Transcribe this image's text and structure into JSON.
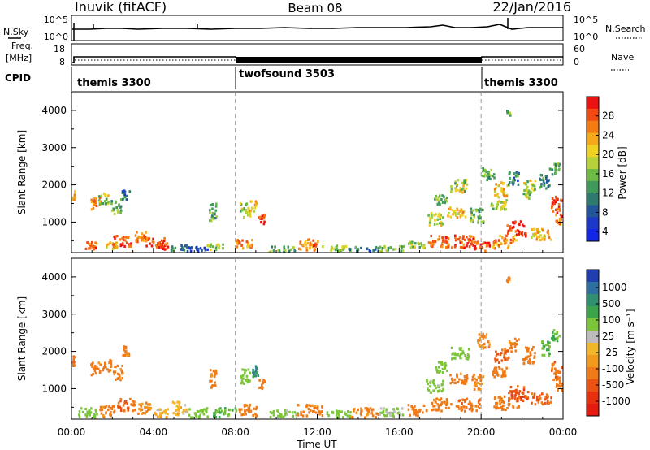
{
  "header": {
    "station": "Inuvik (fitACF)",
    "beam": "Beam 08",
    "date": "22/Jan/2016"
  },
  "strips": {
    "nsky": {
      "label": "N.Sky",
      "ticks": [
        "10^5",
        "10^0"
      ]
    },
    "nsearch": {
      "label": "N.Search",
      "ticks": [
        "10^5",
        "10^0"
      ]
    },
    "freq": {
      "label_line1": "Freq.",
      "label_line2": "[MHz]",
      "ticks": [
        "18",
        "8"
      ]
    },
    "nave": {
      "label": "Nave",
      "ticks": [
        "60",
        "0"
      ]
    },
    "cpid": {
      "label": "CPID",
      "segments": [
        {
          "name": "themis 3300",
          "start_hour": 0,
          "end_hour": 8
        },
        {
          "name": "twofsound 3503",
          "start_hour": 8,
          "end_hour": 20
        },
        {
          "name": "themis 3300",
          "start_hour": 20,
          "end_hour": 24
        }
      ]
    }
  },
  "axes": {
    "ylabel": "Slant Range [km]",
    "xlabel": "Time UT",
    "yticks": [
      "4000",
      "3000",
      "2000",
      "1000"
    ],
    "xticks": [
      "00:00",
      "04:00",
      "08:00",
      "12:00",
      "16:00",
      "20:00",
      "00:00"
    ]
  },
  "colorbars": {
    "power": {
      "label": "Power [dB]",
      "ticks": [
        "28",
        "24",
        "20",
        "16",
        "12",
        "8",
        "4"
      ],
      "colors": [
        "#ee1111",
        "#f24a10",
        "#f47a12",
        "#f5a81a",
        "#f0d020",
        "#b6d23a",
        "#6dbb45",
        "#3f9a5a",
        "#2e7a6e",
        "#23559a",
        "#1c38c8",
        "#1226e8"
      ]
    },
    "velocity": {
      "label": "Velocity [m s⁻¹]",
      "ticks": [
        "1000",
        "500",
        "100",
        "25",
        "-25",
        "-100",
        "-500",
        "-1000"
      ],
      "colors": [
        "#1f3fb0",
        "#2c6fa0",
        "#2f8f6f",
        "#3aa44a",
        "#7cc43a",
        "#bcbcbc",
        "#f3b52a",
        "#f29a1e",
        "#f07a17",
        "#ec5312",
        "#e8300f",
        "#e31a0c"
      ]
    }
  },
  "chart_data": {
    "type": "heatmap",
    "x_label": "Time UT",
    "x_units": "hours UT",
    "x_range": [
      0,
      24
    ],
    "y_label": "Slant Range [km]",
    "y_range": [
      180,
      4500
    ],
    "cpid_changes_hours": [
      8,
      20
    ],
    "power_patches": [
      {
        "t": 0.0,
        "r": 1750,
        "dt": 0.15,
        "dr": 300,
        "v": 20
      },
      {
        "t": 0.9,
        "r": 1550,
        "dt": 0.5,
        "dr": 350,
        "v": 24
      },
      {
        "t": 1.3,
        "r": 1650,
        "dt": 0.5,
        "dr": 300,
        "v": 16
      },
      {
        "t": 1.9,
        "r": 1450,
        "dt": 0.5,
        "dr": 400,
        "v": 12
      },
      {
        "t": 2.4,
        "r": 1750,
        "dt": 0.4,
        "dr": 250,
        "v": 8
      },
      {
        "t": 0.6,
        "r": 420,
        "dt": 0.6,
        "dr": 250,
        "v": 24
      },
      {
        "t": 1.6,
        "r": 380,
        "dt": 0.6,
        "dr": 200,
        "v": 20
      },
      {
        "t": 2.0,
        "r": 520,
        "dt": 0.9,
        "dr": 300,
        "v": 28
      },
      {
        "t": 3.0,
        "r": 620,
        "dt": 0.7,
        "dr": 300,
        "v": 24
      },
      {
        "t": 3.6,
        "r": 480,
        "dt": 0.9,
        "dr": 250,
        "v": 28
      },
      {
        "t": 4.2,
        "r": 380,
        "dt": 0.5,
        "dr": 200,
        "v": 28
      },
      {
        "t": 4.8,
        "r": 340,
        "dt": 0.8,
        "dr": 150,
        "v": 8
      },
      {
        "t": 5.6,
        "r": 300,
        "dt": 1.0,
        "dr": 120,
        "v": 4
      },
      {
        "t": 6.7,
        "r": 1300,
        "dt": 0.35,
        "dr": 500,
        "v": 12
      },
      {
        "t": 6.6,
        "r": 360,
        "dt": 0.8,
        "dr": 150,
        "v": 16
      },
      {
        "t": 8.2,
        "r": 1350,
        "dt": 0.5,
        "dr": 400,
        "v": 16
      },
      {
        "t": 8.7,
        "r": 1450,
        "dt": 0.3,
        "dr": 300,
        "v": 20
      },
      {
        "t": 9.1,
        "r": 1100,
        "dt": 0.3,
        "dr": 250,
        "v": 28
      },
      {
        "t": 8.0,
        "r": 450,
        "dt": 0.8,
        "dr": 250,
        "v": 24
      },
      {
        "t": 9.6,
        "r": 300,
        "dt": 1.4,
        "dr": 150,
        "v": 12
      },
      {
        "t": 11.0,
        "r": 420,
        "dt": 1.0,
        "dr": 300,
        "v": 24
      },
      {
        "t": 12.2,
        "r": 320,
        "dt": 1.2,
        "dr": 150,
        "v": 16
      },
      {
        "t": 13.5,
        "r": 300,
        "dt": 1.5,
        "dr": 120,
        "v": 8
      },
      {
        "t": 15.0,
        "r": 320,
        "dt": 1.2,
        "dr": 150,
        "v": 12
      },
      {
        "t": 16.4,
        "r": 400,
        "dt": 0.8,
        "dr": 200,
        "v": 16
      },
      {
        "t": 17.3,
        "r": 1100,
        "dt": 0.8,
        "dr": 350,
        "v": 16
      },
      {
        "t": 17.7,
        "r": 1650,
        "dt": 0.6,
        "dr": 300,
        "v": 12
      },
      {
        "t": 17.4,
        "r": 500,
        "dt": 1.0,
        "dr": 350,
        "v": 24
      },
      {
        "t": 18.4,
        "r": 2000,
        "dt": 0.9,
        "dr": 350,
        "v": 16
      },
      {
        "t": 18.3,
        "r": 1300,
        "dt": 0.9,
        "dr": 300,
        "v": 20
      },
      {
        "t": 18.5,
        "r": 500,
        "dt": 1.2,
        "dr": 350,
        "v": 28
      },
      {
        "t": 19.4,
        "r": 1200,
        "dt": 0.7,
        "dr": 400,
        "v": 12
      },
      {
        "t": 19.5,
        "r": 380,
        "dt": 0.9,
        "dr": 250,
        "v": 28
      },
      {
        "t": 20.0,
        "r": 2300,
        "dt": 0.6,
        "dr": 400,
        "v": 12
      },
      {
        "t": 20.6,
        "r": 1900,
        "dt": 0.7,
        "dr": 400,
        "v": 20
      },
      {
        "t": 20.4,
        "r": 1500,
        "dt": 0.8,
        "dr": 300,
        "v": 16
      },
      {
        "t": 20.5,
        "r": 500,
        "dt": 1.2,
        "dr": 350,
        "v": 24
      },
      {
        "t": 21.2,
        "r": 850,
        "dt": 1.0,
        "dr": 400,
        "v": 28
      },
      {
        "t": 21.3,
        "r": 2200,
        "dt": 0.5,
        "dr": 350,
        "v": 8
      },
      {
        "t": 21.2,
        "r": 3950,
        "dt": 0.2,
        "dr": 150,
        "v": 12
      },
      {
        "t": 22.0,
        "r": 1900,
        "dt": 0.6,
        "dr": 500,
        "v": 16
      },
      {
        "t": 22.4,
        "r": 700,
        "dt": 1.0,
        "dr": 300,
        "v": 20
      },
      {
        "t": 22.8,
        "r": 2100,
        "dt": 0.5,
        "dr": 400,
        "v": 8
      },
      {
        "t": 23.4,
        "r": 1500,
        "dt": 0.5,
        "dr": 500,
        "v": 28
      },
      {
        "t": 23.6,
        "r": 1100,
        "dt": 0.3,
        "dr": 300,
        "v": 24
      },
      {
        "t": 23.3,
        "r": 2450,
        "dt": 0.5,
        "dr": 300,
        "v": 12
      }
    ],
    "velocity_patches": [
      {
        "t": 0.0,
        "r": 1750,
        "dt": 0.15,
        "dr": 300,
        "v": -300
      },
      {
        "t": 0.9,
        "r": 1550,
        "dt": 0.5,
        "dr": 350,
        "v": -150
      },
      {
        "t": 1.4,
        "r": 1650,
        "dt": 0.5,
        "dr": 300,
        "v": -200
      },
      {
        "t": 2.0,
        "r": 1450,
        "dt": 0.5,
        "dr": 400,
        "v": -120
      },
      {
        "t": 2.4,
        "r": 2050,
        "dt": 0.4,
        "dr": 250,
        "v": -150
      },
      {
        "t": 0.3,
        "r": 380,
        "dt": 0.9,
        "dr": 250,
        "v": 200
      },
      {
        "t": 1.3,
        "r": 420,
        "dt": 0.8,
        "dr": 300,
        "v": -150
      },
      {
        "t": 2.2,
        "r": 600,
        "dt": 0.9,
        "dr": 350,
        "v": -250
      },
      {
        "t": 3.2,
        "r": 500,
        "dt": 0.8,
        "dr": 300,
        "v": -100
      },
      {
        "t": 4.0,
        "r": 380,
        "dt": 0.7,
        "dr": 250,
        "v": 0
      },
      {
        "t": 4.9,
        "r": 500,
        "dt": 0.8,
        "dr": 350,
        "v": 0
      },
      {
        "t": 5.7,
        "r": 380,
        "dt": 0.9,
        "dr": 250,
        "v": 150
      },
      {
        "t": 6.7,
        "r": 1300,
        "dt": 0.35,
        "dr": 500,
        "v": -150
      },
      {
        "t": 6.9,
        "r": 380,
        "dt": 1.1,
        "dr": 250,
        "v": 300
      },
      {
        "t": 8.2,
        "r": 1350,
        "dt": 0.5,
        "dr": 400,
        "v": 200
      },
      {
        "t": 8.8,
        "r": 1500,
        "dt": 0.3,
        "dr": 300,
        "v": 600
      },
      {
        "t": 9.1,
        "r": 1150,
        "dt": 0.3,
        "dr": 250,
        "v": -200
      },
      {
        "t": 8.1,
        "r": 450,
        "dt": 0.9,
        "dr": 300,
        "v": -150
      },
      {
        "t": 9.6,
        "r": 350,
        "dt": 1.4,
        "dr": 200,
        "v": 150
      },
      {
        "t": 11.0,
        "r": 450,
        "dt": 1.2,
        "dr": 300,
        "v": -150
      },
      {
        "t": 12.4,
        "r": 350,
        "dt": 1.2,
        "dr": 200,
        "v": 200
      },
      {
        "t": 13.6,
        "r": 380,
        "dt": 1.4,
        "dr": 250,
        "v": -120
      },
      {
        "t": 15.0,
        "r": 400,
        "dt": 1.2,
        "dr": 250,
        "v": 100
      },
      {
        "t": 16.4,
        "r": 450,
        "dt": 0.9,
        "dr": 300,
        "v": -200
      },
      {
        "t": 17.3,
        "r": 1100,
        "dt": 0.8,
        "dr": 350,
        "v": 150
      },
      {
        "t": 17.7,
        "r": 1600,
        "dt": 0.6,
        "dr": 300,
        "v": 200
      },
      {
        "t": 17.5,
        "r": 600,
        "dt": 1.0,
        "dr": 350,
        "v": -150
      },
      {
        "t": 18.5,
        "r": 2000,
        "dt": 0.9,
        "dr": 350,
        "v": 150
      },
      {
        "t": 18.4,
        "r": 1300,
        "dt": 0.9,
        "dr": 300,
        "v": -150
      },
      {
        "t": 18.7,
        "r": 600,
        "dt": 1.2,
        "dr": 350,
        "v": -250
      },
      {
        "t": 19.5,
        "r": 1200,
        "dt": 0.6,
        "dr": 400,
        "v": -120
      },
      {
        "t": 19.8,
        "r": 2300,
        "dt": 0.6,
        "dr": 400,
        "v": -100
      },
      {
        "t": 20.6,
        "r": 1900,
        "dt": 0.7,
        "dr": 400,
        "v": -300
      },
      {
        "t": 20.5,
        "r": 1500,
        "dt": 0.8,
        "dr": 300,
        "v": -150
      },
      {
        "t": 20.6,
        "r": 650,
        "dt": 1.2,
        "dr": 400,
        "v": -200
      },
      {
        "t": 21.3,
        "r": 900,
        "dt": 1.0,
        "dr": 400,
        "v": -400
      },
      {
        "t": 21.3,
        "r": 2200,
        "dt": 0.5,
        "dr": 350,
        "v": -150
      },
      {
        "t": 21.2,
        "r": 3950,
        "dt": 0.2,
        "dr": 150,
        "v": -150
      },
      {
        "t": 22.0,
        "r": 1900,
        "dt": 0.6,
        "dr": 500,
        "v": -200
      },
      {
        "t": 22.4,
        "r": 750,
        "dt": 1.0,
        "dr": 300,
        "v": -300
      },
      {
        "t": 22.9,
        "r": 2100,
        "dt": 0.5,
        "dr": 400,
        "v": 300
      },
      {
        "t": 23.4,
        "r": 1500,
        "dt": 0.5,
        "dr": 500,
        "v": -300
      },
      {
        "t": 23.6,
        "r": 1100,
        "dt": 0.3,
        "dr": 300,
        "v": -200
      },
      {
        "t": 23.3,
        "r": 2450,
        "dt": 0.5,
        "dr": 300,
        "v": 300
      }
    ]
  }
}
